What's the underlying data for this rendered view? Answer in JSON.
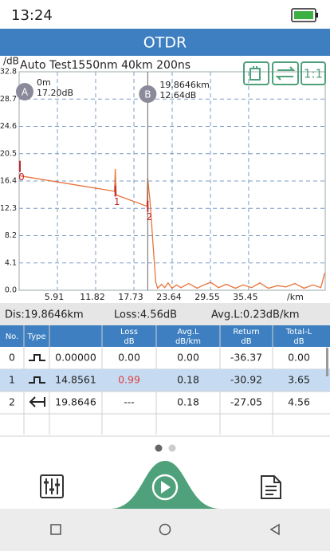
{
  "status_bar": {
    "time": "13:24"
  },
  "header": {
    "title": "OTDR"
  },
  "toolbar": {
    "zoom_button": "1:1"
  },
  "chart_data": {
    "type": "line",
    "title": "Auto Test1550nm  40km  200ns",
    "y_label": "/dB",
    "x_label": "/km",
    "xlim": [
      0,
      47.28
    ],
    "ylim": [
      0,
      32.8
    ],
    "xticks": [
      5.91,
      11.82,
      17.73,
      23.64,
      29.55,
      35.45
    ],
    "yticks": [
      {
        "value": 0,
        "label": "0.0"
      },
      4.1,
      8.2,
      12.3,
      16.4,
      20.5,
      24.6,
      28.7,
      32.8
    ],
    "grid": true,
    "series": [
      {
        "color": "#e8743b",
        "x": [
          0,
          14.75,
          14.85,
          15.0,
          19.75,
          19.86,
          20.2,
          21.1,
          21.4,
          22.0,
          22.5,
          23.0,
          23.6,
          24.3,
          25.0,
          26.2,
          27.5,
          28.3,
          29.6,
          30.8,
          32.0,
          33.4,
          34.6,
          35.9,
          37.2,
          38.5,
          39.9,
          41.2,
          42.6,
          44.0,
          45.4,
          46.6,
          47.2
        ],
        "values": [
          17.2,
          14.85,
          18.2,
          14.3,
          12.6,
          16.8,
          13.5,
          1.2,
          0.3,
          0.9,
          0.4,
          1.1,
          0.3,
          0.8,
          0.4,
          1.0,
          0.3,
          0.7,
          1.2,
          0.4,
          0.9,
          0.3,
          0.8,
          0.4,
          1.1,
          0.3,
          0.7,
          0.5,
          1.0,
          0.3,
          0.8,
          0.4,
          2.6
        ]
      }
    ],
    "cursors": [
      {
        "label": "A",
        "x": 0,
        "position": "0m",
        "loss": "17.20dB"
      },
      {
        "label": "B",
        "x": 19.8646,
        "position": "19.8646km",
        "loss": "12.64dB"
      }
    ],
    "events": [
      {
        "label": "0",
        "x": 0,
        "y": 18.6
      },
      {
        "label": "1",
        "x": 14.8561,
        "y": 14.9
      },
      {
        "label": "2",
        "x": 19.8646,
        "y": 12.6
      }
    ],
    "event_color": "#c0282d"
  },
  "summary": {
    "distance": "Dis:19.8646km",
    "loss": "Loss:4.56dB",
    "avg_loss": "Avg.L:0.23dB/km"
  },
  "table": {
    "header": [
      [
        "No."
      ],
      [
        "Type"
      ],
      [
        "Loss",
        "dB"
      ],
      [
        "Avg.L",
        "dB/km"
      ],
      [
        "Return",
        "dB"
      ],
      [
        "Total-L",
        "dB"
      ]
    ],
    "rows": [
      [
        "0",
        "0.00000",
        "0.00",
        "0.00",
        "-36.37",
        "0.00"
      ],
      [
        "1",
        "14.8561",
        "0.99",
        "0.18",
        "-30.92",
        "3.65"
      ],
      [
        "2",
        "19.8646",
        "---",
        "0.18",
        "-27.05",
        "4.56"
      ]
    ],
    "highlight_row": 1,
    "highlight_color": "#c6dbf1",
    "alert_cell": [
      1,
      2
    ],
    "alert_color": "#e0403a"
  }
}
